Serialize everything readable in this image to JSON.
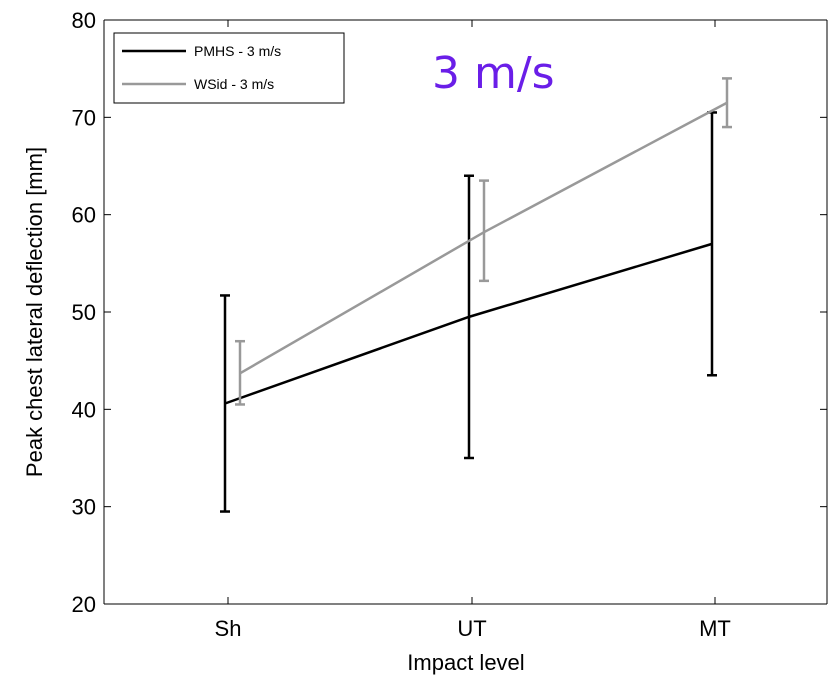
{
  "chart_data": {
    "type": "line",
    "title": "",
    "annotation": "3 m/s",
    "annotation_color": "#6a1ee8",
    "xlabel": "Impact level",
    "ylabel": "Peak chest lateral deflection [mm]",
    "categories": [
      "Sh",
      "UT",
      "MT"
    ],
    "ylim": [
      20,
      80
    ],
    "yticks": [
      20,
      30,
      40,
      50,
      60,
      70,
      80
    ],
    "grid": false,
    "legend_position": "top-left",
    "series": [
      {
        "name": "PMHS - 3 m/s",
        "color": "#000000",
        "values": [
          40.6,
          49.5,
          57.0
        ],
        "error_low": [
          29.5,
          35.0,
          43.5
        ],
        "error_high": [
          51.7,
          64.0,
          70.5
        ]
      },
      {
        "name": "WSid - 3 m/s",
        "color": "#999999",
        "values": [
          43.7,
          58.2,
          71.5
        ],
        "error_low": [
          40.5,
          53.2,
          69.0
        ],
        "error_high": [
          47.0,
          63.5,
          74.0
        ]
      }
    ]
  }
}
